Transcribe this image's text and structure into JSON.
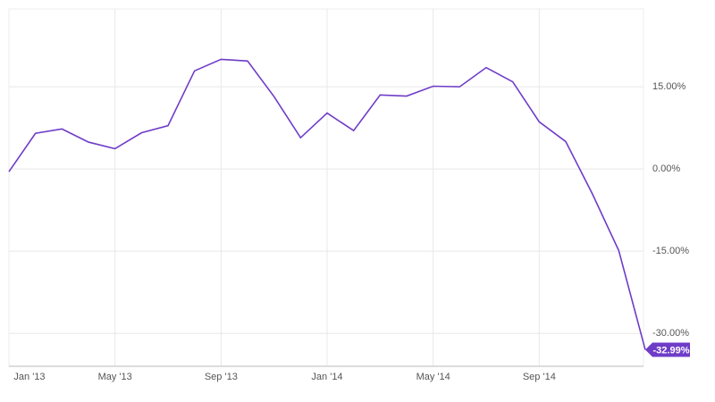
{
  "chart_data": {
    "type": "line",
    "x": [
      "2013-01",
      "2013-02",
      "2013-03",
      "2013-04",
      "2013-05",
      "2013-06",
      "2013-07",
      "2013-08",
      "2013-09",
      "2013-10",
      "2013-11",
      "2013-12",
      "2014-01",
      "2014-02",
      "2014-03",
      "2014-04",
      "2014-05",
      "2014-06",
      "2014-07",
      "2014-08",
      "2014-09",
      "2014-10",
      "2014-11",
      "2014-12",
      "2015-01"
    ],
    "series": [
      {
        "color": "#6f3cc8",
        "values": [
          -0.5,
          6.5,
          7.3,
          4.9,
          3.7,
          6.6,
          7.9,
          17.9,
          20.0,
          19.7,
          13.2,
          5.7,
          10.2,
          7.0,
          13.5,
          13.3,
          15.1,
          15.0,
          18.5,
          15.9,
          8.6,
          5.0,
          -4.5,
          -14.9,
          -32.99
        ],
        "value_labels": [
          null,
          null,
          null,
          null,
          null,
          null,
          null,
          null,
          null,
          null,
          null,
          null,
          null,
          null,
          null,
          null,
          null,
          null,
          null,
          null,
          null,
          null,
          null,
          null,
          "-32.99%"
        ]
      }
    ],
    "xticks": [
      {
        "value": "2013-01",
        "label": "Jan '13"
      },
      {
        "value": "2013-05",
        "label": "May '13"
      },
      {
        "value": "2013-09",
        "label": "Sep '13"
      },
      {
        "value": "2014-01",
        "label": "Jan '14"
      },
      {
        "value": "2014-05",
        "label": "May '14"
      },
      {
        "value": "2014-09",
        "label": "Sep '14"
      }
    ],
    "ylim": [
      -36,
      29.2
    ],
    "yticks": [
      {
        "value": 15,
        "label": "15.00%"
      },
      {
        "value": 0,
        "label": "0.00%"
      },
      {
        "value": -15,
        "label": "-15.00%"
      },
      {
        "value": -30,
        "label": "-30.00%"
      }
    ],
    "grid": true
  }
}
